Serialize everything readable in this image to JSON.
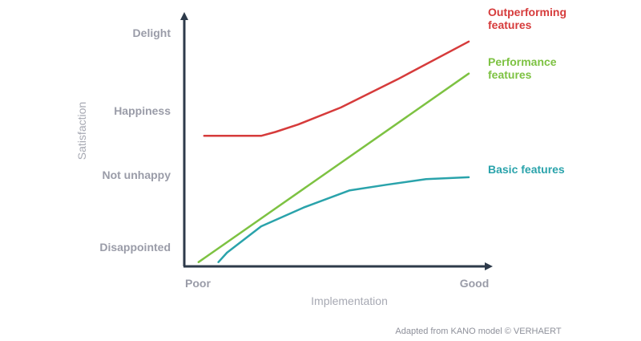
{
  "chart_data": {
    "type": "line",
    "xlabel": "Implementation",
    "ylabel": "Satisfaction",
    "x_ticks": [
      "Poor",
      "Good"
    ],
    "y_ticks": [
      "Delight",
      "Happiness",
      "Not unhappy",
      "Disappointed"
    ],
    "xlim": [
      0,
      100
    ],
    "ylim": [
      0,
      100
    ],
    "grid": false,
    "legend": "inline labels at line ends",
    "series": [
      {
        "name": "Outperforming features",
        "color": "#d63b3b",
        "points": [
          [
            7,
            65
          ],
          [
            27,
            65
          ],
          [
            32,
            67
          ],
          [
            40,
            71
          ],
          [
            55,
            80
          ],
          [
            75,
            95
          ],
          [
            100,
            115
          ]
        ]
      },
      {
        "name": "Performance features",
        "color": "#7dc242",
        "points": [
          [
            5,
            -2
          ],
          [
            100,
            98
          ]
        ]
      },
      {
        "name": "Basic features",
        "color": "#2aa3ab",
        "points": [
          [
            12,
            -2
          ],
          [
            15,
            3
          ],
          [
            27,
            17
          ],
          [
            42,
            27
          ],
          [
            58,
            36
          ],
          [
            71,
            39
          ],
          [
            85,
            42
          ],
          [
            100,
            43
          ]
        ]
      }
    ],
    "source_note": "Adapted from KANO model © VERHAERT"
  }
}
